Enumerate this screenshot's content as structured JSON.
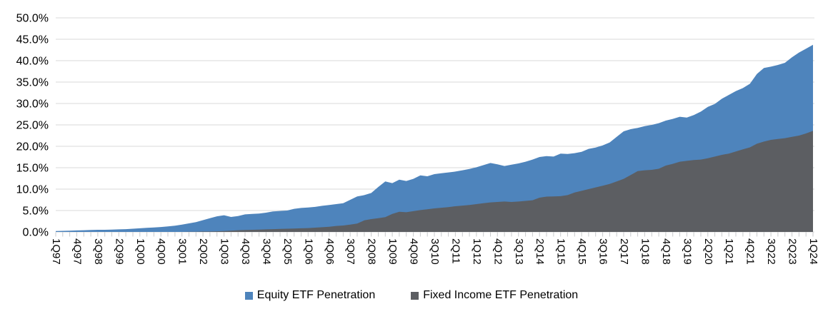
{
  "chart": {
    "legend": {
      "equity_label": "Equity ETF Penetration",
      "fixed_income_label": "Fixed Income ETF Penetration"
    }
  },
  "chart_data": {
    "type": "area",
    "stacked": false,
    "title": "",
    "xlabel": "",
    "ylabel": "",
    "ylim": [
      0,
      50
    ],
    "y_tick_step": 5,
    "grid": "horizontal",
    "legend_position": "bottom",
    "gridline_color": "#D9D9D9",
    "tick_color": "#C8CACC",
    "x_label_interval": 3,
    "y_ticks": [
      50,
      45,
      40,
      35,
      30,
      25,
      20,
      15,
      10,
      5,
      0
    ],
    "y_tick_labels": [
      "50.0%",
      "45.0%",
      "40.0%",
      "35.0%",
      "30.0%",
      "25.0%",
      "20.0%",
      "15.0%",
      "10.0%",
      "5.0%",
      "0.0%"
    ],
    "x": [
      "1Q97",
      "2Q97",
      "3Q97",
      "4Q97",
      "1Q98",
      "2Q98",
      "3Q98",
      "4Q98",
      "1Q99",
      "2Q99",
      "3Q99",
      "4Q99",
      "1Q00",
      "2Q00",
      "3Q00",
      "4Q00",
      "1Q01",
      "2Q01",
      "3Q01",
      "4Q01",
      "1Q02",
      "2Q02",
      "3Q02",
      "4Q02",
      "1Q03",
      "2Q03",
      "3Q03",
      "4Q03",
      "1Q04",
      "2Q04",
      "3Q04",
      "4Q04",
      "1Q05",
      "2Q05",
      "3Q05",
      "4Q05",
      "1Q06",
      "2Q06",
      "3Q06",
      "4Q06",
      "1Q07",
      "2Q07",
      "3Q07",
      "4Q07",
      "1Q08",
      "2Q08",
      "3Q08",
      "4Q08",
      "1Q09",
      "2Q09",
      "3Q09",
      "4Q09",
      "1Q10",
      "2Q10",
      "3Q10",
      "4Q10",
      "1Q11",
      "2Q11",
      "3Q11",
      "4Q11",
      "1Q12",
      "2Q12",
      "3Q12",
      "4Q12",
      "1Q13",
      "2Q13",
      "3Q13",
      "4Q13",
      "1Q14",
      "2Q14",
      "3Q14",
      "4Q14",
      "1Q15",
      "2Q15",
      "3Q15",
      "4Q15",
      "1Q16",
      "2Q16",
      "3Q16",
      "4Q16",
      "1Q17",
      "2Q17",
      "3Q17",
      "4Q17",
      "1Q18",
      "2Q18",
      "3Q18",
      "4Q18",
      "1Q19",
      "2Q19",
      "3Q19",
      "4Q19",
      "1Q20",
      "2Q20",
      "3Q20",
      "4Q20",
      "1Q21",
      "2Q21",
      "3Q21",
      "4Q21",
      "1Q22",
      "2Q22",
      "3Q22",
      "4Q22",
      "1Q23",
      "2Q23",
      "3Q23",
      "4Q23",
      "1Q24"
    ],
    "series": [
      {
        "name": "Equity ETF Penetration",
        "color": "#4E84BC",
        "values": [
          0.2,
          0.25,
          0.3,
          0.35,
          0.4,
          0.45,
          0.5,
          0.5,
          0.55,
          0.6,
          0.65,
          0.75,
          0.85,
          0.95,
          1.05,
          1.15,
          1.3,
          1.45,
          1.7,
          2.0,
          2.3,
          2.75,
          3.2,
          3.65,
          3.9,
          3.5,
          3.7,
          4.1,
          4.2,
          4.3,
          4.5,
          4.8,
          4.9,
          5.0,
          5.4,
          5.6,
          5.7,
          5.85,
          6.1,
          6.3,
          6.5,
          6.7,
          7.5,
          8.3,
          8.6,
          9.1,
          10.5,
          11.8,
          11.4,
          12.2,
          11.9,
          12.4,
          13.2,
          13.0,
          13.5,
          13.7,
          13.9,
          14.1,
          14.4,
          14.7,
          15.1,
          15.6,
          16.1,
          15.8,
          15.4,
          15.7,
          16.0,
          16.4,
          16.9,
          17.5,
          17.7,
          17.6,
          18.3,
          18.2,
          18.4,
          18.7,
          19.4,
          19.7,
          20.2,
          20.9,
          22.2,
          23.5,
          24.0,
          24.3,
          24.7,
          25.0,
          25.4,
          26.0,
          26.4,
          26.9,
          26.7,
          27.3,
          28.1,
          29.2,
          29.9,
          31.1,
          32.0,
          32.9,
          33.6,
          34.6,
          36.9,
          38.3,
          38.6,
          39.0,
          39.5,
          40.8,
          41.9,
          42.8,
          43.7
        ]
      },
      {
        "name": "Fixed Income ETF Penetration",
        "color": "#5C5E62",
        "values": [
          0,
          0,
          0,
          0,
          0,
          0,
          0,
          0,
          0,
          0,
          0,
          0,
          0,
          0,
          0,
          0,
          0,
          0,
          0,
          0.05,
          0.05,
          0.1,
          0.1,
          0.15,
          0.2,
          0.3,
          0.4,
          0.45,
          0.5,
          0.55,
          0.6,
          0.65,
          0.7,
          0.75,
          0.8,
          0.85,
          0.9,
          1.0,
          1.1,
          1.2,
          1.4,
          1.5,
          1.7,
          1.95,
          2.7,
          3.0,
          3.2,
          3.45,
          4.2,
          4.7,
          4.6,
          4.85,
          5.1,
          5.3,
          5.5,
          5.65,
          5.8,
          6.0,
          6.15,
          6.3,
          6.5,
          6.7,
          6.9,
          7.0,
          7.1,
          7.0,
          7.1,
          7.25,
          7.4,
          8.0,
          8.25,
          8.3,
          8.35,
          8.6,
          9.2,
          9.6,
          10.0,
          10.4,
          10.8,
          11.2,
          11.8,
          12.4,
          13.3,
          14.2,
          14.4,
          14.5,
          14.75,
          15.5,
          15.9,
          16.4,
          16.6,
          16.8,
          16.9,
          17.2,
          17.6,
          18.0,
          18.3,
          18.8,
          19.3,
          19.75,
          20.6,
          21.1,
          21.5,
          21.7,
          21.9,
          22.2,
          22.5,
          23.0,
          23.6
        ]
      }
    ]
  }
}
